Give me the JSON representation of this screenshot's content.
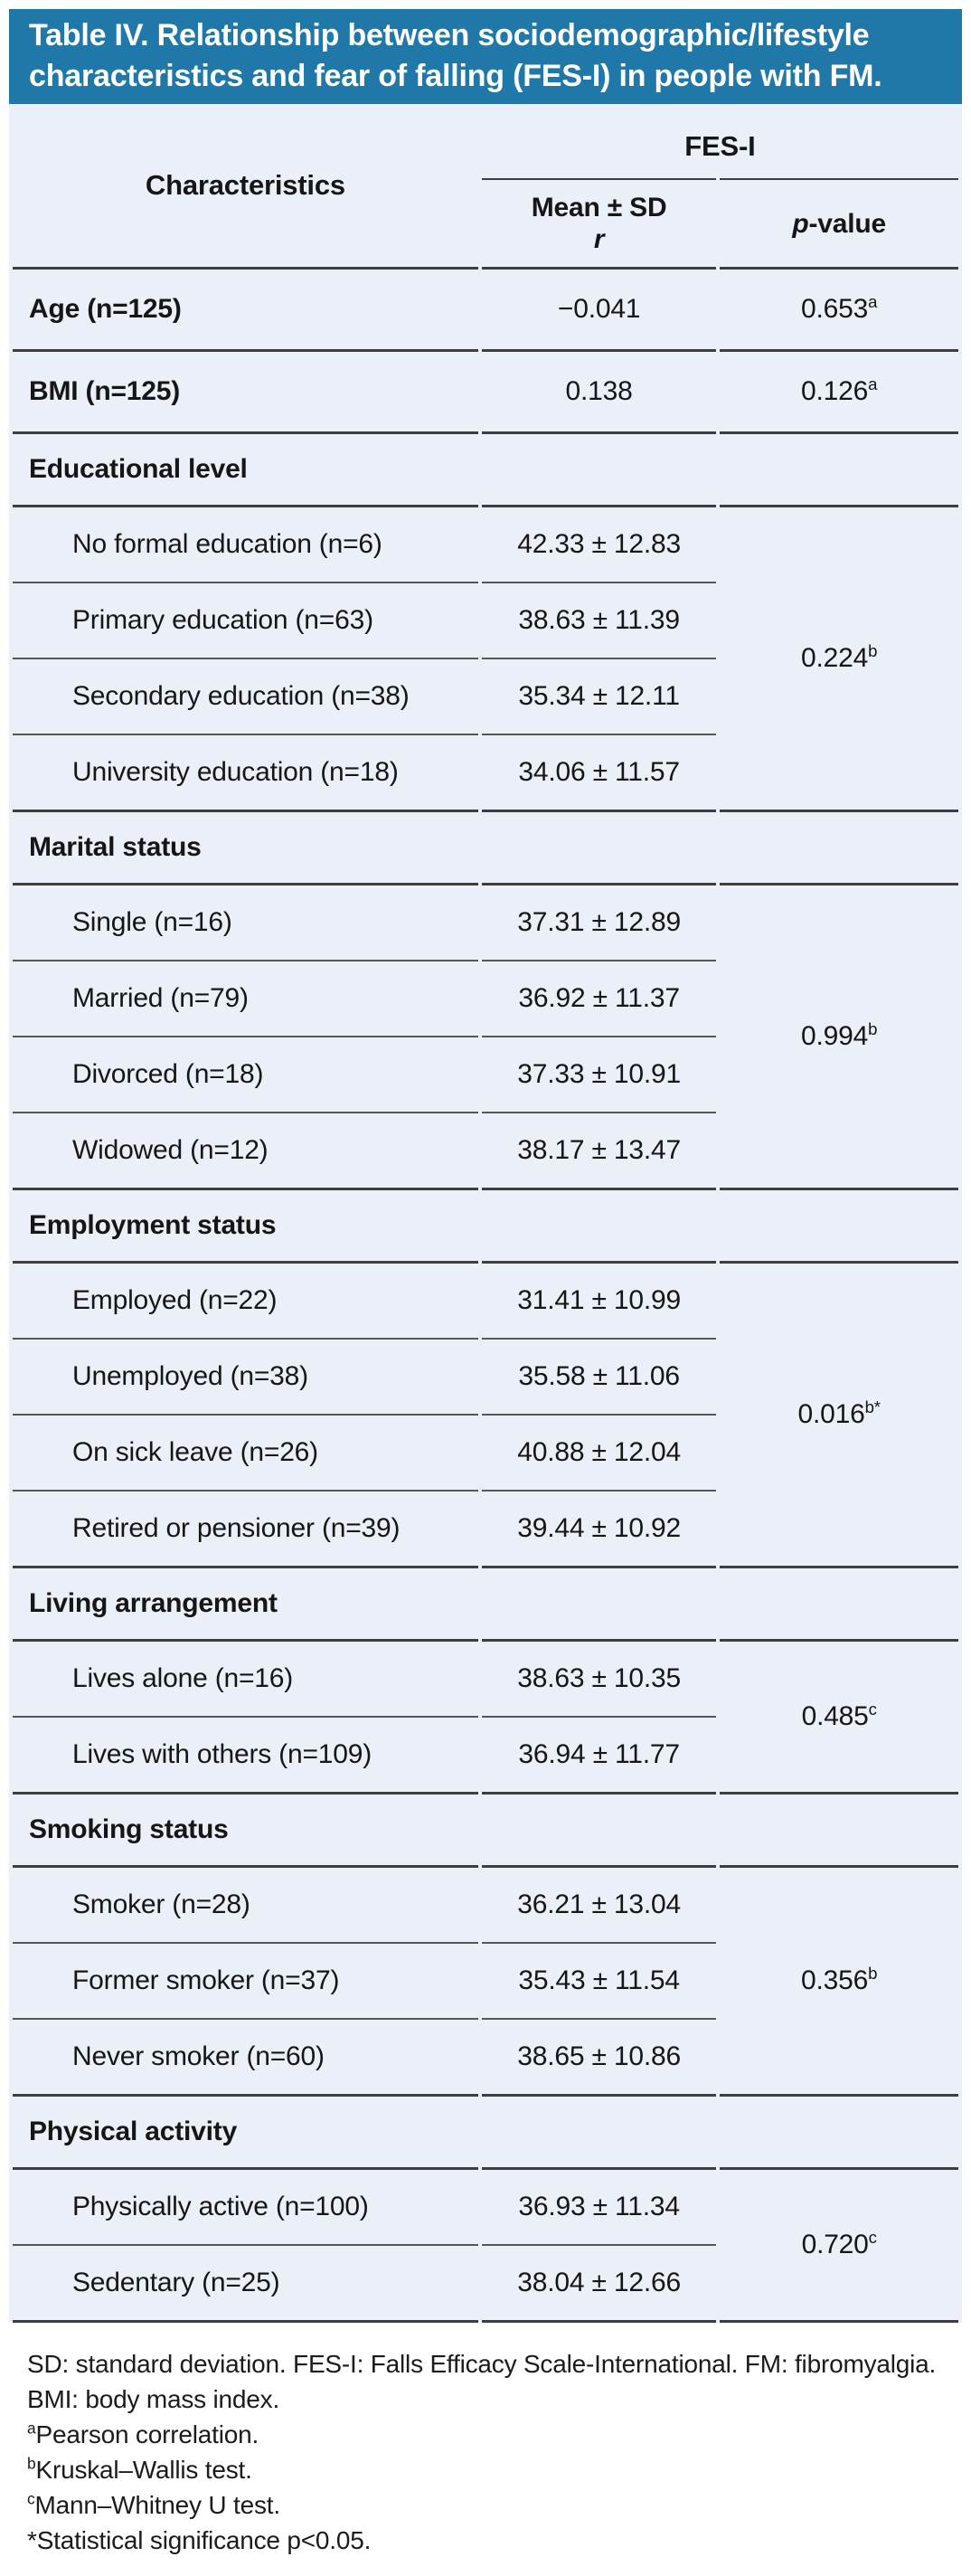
{
  "title": "Table IV. Relationship between sociodemographic/lifestyle characteristics and fear of falling (FES-I) in people with FM.",
  "colors": {
    "title_bar_bg": "#1f78a7",
    "title_text": "#ffffff",
    "table_bg": "#ebeff7",
    "rule_major": "#3e3e3e",
    "rule_minor": "#575757",
    "body_text": "#161616"
  },
  "table": {
    "col1_header": "Characteristics",
    "span_header": "FES-I",
    "col2_header_line1": "Mean ± SD",
    "col2_header_line2": "r",
    "col3_header_italic": "p",
    "col3_header_rest": "-value",
    "sections": [
      {
        "type": "single",
        "label": "Age (n=125)",
        "value": "−0.041",
        "p": "0.653",
        "p_sup": "a"
      },
      {
        "type": "single",
        "label": "BMI (n=125)",
        "value": "0.138",
        "p": "0.126",
        "p_sup": "a"
      },
      {
        "type": "group",
        "label": "Educational level",
        "p": "0.224",
        "p_sup": "b",
        "items": [
          {
            "label": "No formal education (n=6)",
            "value": "42.33 ± 12.83"
          },
          {
            "label": "Primary education (n=63)",
            "value": "38.63 ± 11.39"
          },
          {
            "label": "Secondary education (n=38)",
            "value": "35.34 ± 12.11"
          },
          {
            "label": "University education (n=18)",
            "value": "34.06 ± 11.57"
          }
        ]
      },
      {
        "type": "group",
        "label": "Marital status",
        "p": "0.994",
        "p_sup": "b",
        "items": [
          {
            "label": "Single (n=16)",
            "value": "37.31 ± 12.89"
          },
          {
            "label": "Married (n=79)",
            "value": "36.92 ± 11.37"
          },
          {
            "label": "Divorced (n=18)",
            "value": "37.33 ± 10.91"
          },
          {
            "label": "Widowed (n=12)",
            "value": "38.17 ± 13.47"
          }
        ]
      },
      {
        "type": "group",
        "label": "Employment status",
        "p": "0.016",
        "p_sup": "b*",
        "items": [
          {
            "label": "Employed (n=22)",
            "value": "31.41 ± 10.99"
          },
          {
            "label": "Unemployed (n=38)",
            "value": "35.58 ± 11.06"
          },
          {
            "label": "On sick leave (n=26)",
            "value": "40.88 ± 12.04"
          },
          {
            "label": "Retired or pensioner (n=39)",
            "value": "39.44 ± 10.92"
          }
        ]
      },
      {
        "type": "group",
        "label": "Living arrangement",
        "p": "0.485",
        "p_sup": "c",
        "items": [
          {
            "label": "Lives alone (n=16)",
            "value": "38.63 ± 10.35"
          },
          {
            "label": "Lives with others (n=109)",
            "value": "36.94 ± 11.77"
          }
        ]
      },
      {
        "type": "group",
        "label": "Smoking status",
        "p": "0.356",
        "p_sup": "b",
        "items": [
          {
            "label": "Smoker (n=28)",
            "value": "36.21 ± 13.04"
          },
          {
            "label": "Former smoker (n=37)",
            "value": "35.43 ± 11.54"
          },
          {
            "label": "Never smoker (n=60)",
            "value": "38.65 ± 10.86"
          }
        ]
      },
      {
        "type": "group",
        "label": "Physical activity",
        "p": "0.720",
        "p_sup": "c",
        "items": [
          {
            "label": "Physically active (n=100)",
            "value": "36.93 ± 11.34"
          },
          {
            "label": "Sedentary (n=25)",
            "value": "38.04 ± 12.66"
          }
        ]
      }
    ]
  },
  "footnotes": [
    {
      "sup": "",
      "text": "SD: standard deviation. FES-I: Falls Efficacy Scale-International. FM: fibromyalgia."
    },
    {
      "sup": "",
      "text": "BMI: body mass index."
    },
    {
      "sup": "a",
      "text": "Pearson correlation."
    },
    {
      "sup": "b",
      "text": "Kruskal–Wallis test."
    },
    {
      "sup": "c",
      "text": "Mann–Whitney U test."
    },
    {
      "sup": "",
      "text": "*Statistical significance p<0.05."
    }
  ]
}
